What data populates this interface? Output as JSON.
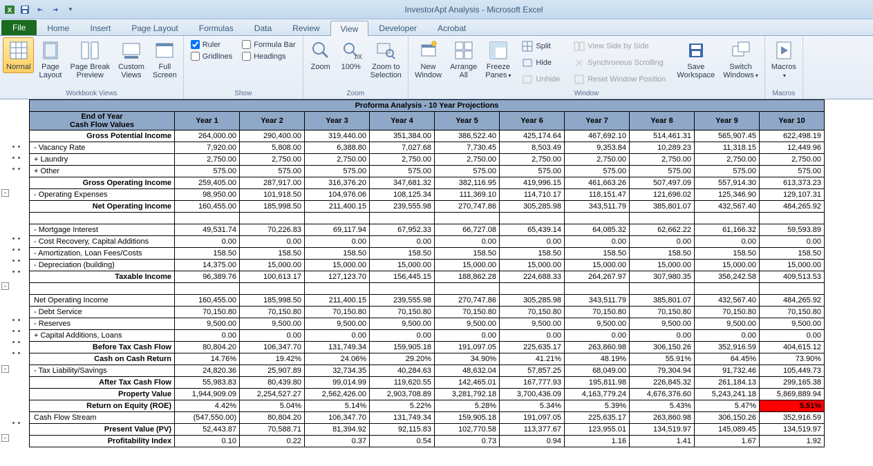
{
  "app": {
    "doc": "InvestorApt Analysis",
    "name": "Microsoft Excel"
  },
  "tabs": {
    "file": "File",
    "list": [
      "Home",
      "Insert",
      "Page Layout",
      "Formulas",
      "Data",
      "Review",
      "View",
      "Developer",
      "Acrobat"
    ],
    "active": "View"
  },
  "ribbon": {
    "workbook_views": {
      "label": "Workbook Views",
      "normal": "Normal",
      "page_layout": "Page\nLayout",
      "page_break": "Page Break\nPreview",
      "custom_views": "Custom\nViews",
      "full_screen": "Full\nScreen"
    },
    "show": {
      "label": "Show",
      "ruler": "Ruler",
      "gridlines": "Gridlines",
      "formula_bar": "Formula Bar",
      "headings": "Headings"
    },
    "zoom": {
      "label": "Zoom",
      "zoom": "Zoom",
      "hundred": "100%",
      "selection": "Zoom to\nSelection"
    },
    "window": {
      "label": "Window",
      "new_window": "New\nWindow",
      "arrange_all": "Arrange\nAll",
      "freeze_panes": "Freeze\nPanes",
      "split": "Split",
      "hide": "Hide",
      "unhide": "Unhide",
      "side_by_side": "View Side by Side",
      "sync_scroll": "Synchronous Scrolling",
      "reset_pos": "Reset Window Position",
      "save_ws": "Save\nWorkspace",
      "switch_win": "Switch\nWindows"
    },
    "macros": {
      "label": "Macros",
      "macros": "Macros"
    }
  },
  "sheet": {
    "title": "Proforma Analysis   -   10 Year Projections",
    "header_label": "End of Year\nCash Flow Values",
    "years": [
      "Year 1",
      "Year 2",
      "Year 3",
      "Year 4",
      "Year 5",
      "Year 6",
      "Year 7",
      "Year 8",
      "Year 9",
      "Year 10"
    ],
    "rows": [
      {
        "label": "Gross Potential Income",
        "bold": true,
        "vals": [
          "264,000.00",
          "290,400.00",
          "319,440.00",
          "351,384.00",
          "386,522.40",
          "425,174.64",
          "467,692.10",
          "514,461.31",
          "565,907.45",
          "622,498.19"
        ]
      },
      {
        "label": "- Vacancy Rate",
        "vals": [
          "7,920.00",
          "5,808.00",
          "6,388.80",
          "7,027.68",
          "7,730.45",
          "8,503.49",
          "9,353.84",
          "10,289.23",
          "11,318.15",
          "12,449.96"
        ]
      },
      {
        "label": "+ Laundry",
        "vals": [
          "2,750.00",
          "2,750.00",
          "2,750.00",
          "2,750.00",
          "2,750.00",
          "2,750.00",
          "2,750.00",
          "2,750.00",
          "2,750.00",
          "2,750.00"
        ]
      },
      {
        "label": "+ Other",
        "vals": [
          "575.00",
          "575.00",
          "575.00",
          "575.00",
          "575.00",
          "575.00",
          "575.00",
          "575.00",
          "575.00",
          "575.00"
        ]
      },
      {
        "label": "Gross Operating Income",
        "bold": true,
        "vals": [
          "259,405.00",
          "287,917.00",
          "316,376.20",
          "347,681.32",
          "382,116.95",
          "419,996.15",
          "461,663.26",
          "507,497.09",
          "557,914.30",
          "613,373.23"
        ]
      },
      {
        "label": "- Operating Expenses",
        "vals": [
          "98,950.00",
          "101,918.50",
          "104,976.06",
          "108,125.34",
          "111,369.10",
          "114,710.17",
          "118,151.47",
          "121,696.02",
          "125,346.90",
          "129,107.31"
        ]
      },
      {
        "label": "Net Operating Income",
        "bold": true,
        "section_bot": true,
        "vals": [
          "160,455.00",
          "185,998.50",
          "211,400.15",
          "239,555.98",
          "270,747.86",
          "305,285.98",
          "343,511.79",
          "385,801.07",
          "432,567.40",
          "484,265.92"
        ]
      },
      {
        "spacer": true
      },
      {
        "label": "- Mortgage Interest",
        "vals": [
          "49,531.74",
          "70,226.83",
          "69,117.94",
          "67,952.33",
          "66,727.08",
          "65,439.14",
          "64,085.32",
          "62,662.22",
          "61,166.32",
          "59,593.89"
        ]
      },
      {
        "label": "- Cost Recovery, Capital Additions",
        "vals": [
          "0.00",
          "0.00",
          "0.00",
          "0.00",
          "0.00",
          "0.00",
          "0.00",
          "0.00",
          "0.00",
          "0.00"
        ]
      },
      {
        "label": "- Amortization, Loan Fees/Costs",
        "vals": [
          "158.50",
          "158.50",
          "158.50",
          "158.50",
          "158.50",
          "158.50",
          "158.50",
          "158.50",
          "158.50",
          "158.50"
        ]
      },
      {
        "label": "- Depreciation (building)",
        "vals": [
          "14,375.00",
          "15,000.00",
          "15,000.00",
          "15,000.00",
          "15,000.00",
          "15,000.00",
          "15,000.00",
          "15,000.00",
          "15,000.00",
          "15,000.00"
        ]
      },
      {
        "label": "Taxable Income",
        "bold": true,
        "section_bot": true,
        "vals": [
          "96,389.76",
          "100,613.17",
          "127,123.70",
          "156,445.15",
          "188,862.28",
          "224,688.33",
          "264,267.97",
          "307,980.35",
          "356,242.58",
          "409,513.53"
        ]
      },
      {
        "spacer": true
      },
      {
        "label": "Net Operating Income",
        "vals": [
          "160,455.00",
          "185,998.50",
          "211,400.15",
          "239,555.98",
          "270,747.86",
          "305,285.98",
          "343,511.79",
          "385,801.07",
          "432,567.40",
          "484,265.92"
        ]
      },
      {
        "label": "- Debt Service",
        "vals": [
          "70,150.80",
          "70,150.80",
          "70,150.80",
          "70,150.80",
          "70,150.80",
          "70,150.80",
          "70,150.80",
          "70,150.80",
          "70,150.80",
          "70,150.80"
        ]
      },
      {
        "label": "- Reserves",
        "vals": [
          "9,500.00",
          "9,500.00",
          "9,500.00",
          "9,500.00",
          "9,500.00",
          "9,500.00",
          "9,500.00",
          "9,500.00",
          "9,500.00",
          "9,500.00"
        ]
      },
      {
        "label": "+ Capital Additions, Loans",
        "vals": [
          "0.00",
          "0.00",
          "0.00",
          "0.00",
          "0.00",
          "0.00",
          "0.00",
          "0.00",
          "0.00",
          "0.00"
        ]
      },
      {
        "label": "Before Tax Cash Flow",
        "bold": true,
        "vals": [
          "80,804.20",
          "106,347.70",
          "131,749.34",
          "159,905.18",
          "191,097.05",
          "225,635.17",
          "263,860.98",
          "306,150.26",
          "352,916.59",
          "404,615.12"
        ]
      },
      {
        "label": "Cash on Cash Return",
        "bold": true,
        "vals": [
          "14.76%",
          "19.42%",
          "24.06%",
          "29.20%",
          "34.90%",
          "41.21%",
          "48.19%",
          "55.91%",
          "64.45%",
          "73.90%"
        ]
      },
      {
        "label": "- Tax Liability/Savings",
        "vals": [
          "24,820.36",
          "25,907.89",
          "32,734.35",
          "40,284.63",
          "48,632.04",
          "57,857.25",
          "68,049.00",
          "79,304.94",
          "91,732.46",
          "105,449.73"
        ]
      },
      {
        "label": "After Tax Cash Flow",
        "bold": true,
        "vals": [
          "55,983.83",
          "80,439.80",
          "99,014.99",
          "119,620.55",
          "142,465.01",
          "167,777.93",
          "195,811.98",
          "226,845.32",
          "261,184.13",
          "299,165.38"
        ]
      },
      {
        "label": "Property Value",
        "bold": true,
        "vals": [
          "1,944,909.09",
          "2,254,527.27",
          "2,562,426.00",
          "2,903,708.89",
          "3,281,792.18",
          "3,700,436.09",
          "4,163,779.24",
          "4,676,376.60",
          "5,243,241.18",
          "5,869,889.94"
        ]
      },
      {
        "label": "Return on Equity (ROE)",
        "bold": true,
        "roe": true,
        "vals": [
          "4.42%",
          "5.04%",
          "5.14%",
          "5.22%",
          "5.28%",
          "5.34%",
          "5.39%",
          "5.43%",
          "5.47%",
          "5.51%"
        ]
      },
      {
        "label": "Cash Flow Stream",
        "section_top": true,
        "vals": [
          "(547,550.00)",
          "80,804.20",
          "106,347.70",
          "131,749.34",
          "159,905.18",
          "191,097.05",
          "225,635.17",
          "263,860.98",
          "306,150.26",
          "352,916.59"
        ]
      },
      {
        "label": "Present Value (PV)",
        "bold": true,
        "vals": [
          "52,443.87",
          "70,588.71",
          "81,394.92",
          "92,115.83",
          "102,770.58",
          "113,377.67",
          "123,955.01",
          "134,519.97",
          "145,089.45",
          "134,519.97"
        ]
      },
      {
        "label": "Profitability Index",
        "bold": true,
        "section_bot": true,
        "vals": [
          "0.10",
          "0.22",
          "0.37",
          "0.54",
          "0.73",
          "0.94",
          "1.16",
          "1.41",
          "1.67",
          "1.92"
        ]
      }
    ]
  },
  "colors": {
    "header_bg": "#8fa8c8",
    "red_highlight": "#ff0000"
  }
}
